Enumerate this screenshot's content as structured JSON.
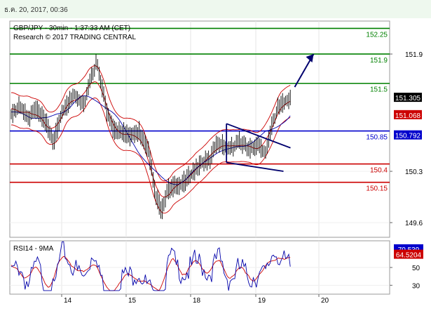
{
  "header": {
    "date_text": "ธ.ค. 20, 2017, 00:36"
  },
  "chart_data": {
    "type": "line",
    "symbol_line": "GBP/JPY - 30min - 1:37:33 AM (CET)",
    "research_line": "Research © 2017 TRADING CENTRAL",
    "x_tick_labels": [
      "14",
      "15",
      "18",
      "19",
      "20"
    ],
    "price_axis": {
      "ticks": [
        "151.9",
        "150.3",
        "149.6"
      ],
      "ylim": [
        149.4,
        152.35
      ]
    },
    "levels": [
      {
        "label": "152.25",
        "value": 152.25,
        "color": "#008000"
      },
      {
        "label": "151.9",
        "value": 151.9,
        "color": "#008000"
      },
      {
        "label": "151.5",
        "value": 151.5,
        "color": "#008000"
      },
      {
        "label": "150.85",
        "value": 150.85,
        "color": "#0000cc"
      },
      {
        "label": "150.4",
        "value": 150.4,
        "color": "#cc0000"
      },
      {
        "label": "150.15",
        "value": 150.15,
        "color": "#cc0000"
      }
    ],
    "price_tags": [
      {
        "label": "151.305",
        "value": 151.305,
        "bg": "#000000",
        "fg": "#ffffff"
      },
      {
        "label": "151.068",
        "value": 151.068,
        "bg": "#cc0000",
        "fg": "#ffffff"
      },
      {
        "label": "150.792",
        "value": 150.792,
        "bg": "#0000cc",
        "fg": "#ffffff"
      }
    ],
    "price_series": [
      {
        "x": 0.0,
        "y": 151.05
      },
      {
        "x": 0.2,
        "y": 151.2
      },
      {
        "x": 0.35,
        "y": 151.0
      },
      {
        "x": 0.5,
        "y": 151.15
      },
      {
        "x": 0.7,
        "y": 150.95
      },
      {
        "x": 0.85,
        "y": 150.7
      },
      {
        "x": 1.0,
        "y": 151.1
      },
      {
        "x": 1.2,
        "y": 151.35
      },
      {
        "x": 1.35,
        "y": 151.2
      },
      {
        "x": 1.45,
        "y": 151.55
      },
      {
        "x": 1.55,
        "y": 151.8
      },
      {
        "x": 1.7,
        "y": 151.1
      },
      {
        "x": 1.8,
        "y": 150.85
      },
      {
        "x": 1.95,
        "y": 150.85
      },
      {
        "x": 2.05,
        "y": 150.75
      },
      {
        "x": 2.2,
        "y": 150.85
      },
      {
        "x": 2.35,
        "y": 150.55
      },
      {
        "x": 2.45,
        "y": 150.0
      },
      {
        "x": 2.55,
        "y": 149.75
      },
      {
        "x": 2.65,
        "y": 150.05
      },
      {
        "x": 2.8,
        "y": 150.1
      },
      {
        "x": 2.9,
        "y": 150.15
      },
      {
        "x": 3.0,
        "y": 150.25
      },
      {
        "x": 3.15,
        "y": 150.4
      },
      {
        "x": 3.3,
        "y": 150.45
      },
      {
        "x": 3.4,
        "y": 150.7
      },
      {
        "x": 3.5,
        "y": 150.65
      },
      {
        "x": 3.6,
        "y": 150.6
      },
      {
        "x": 3.75,
        "y": 150.7
      },
      {
        "x": 3.9,
        "y": 150.6
      },
      {
        "x": 4.05,
        "y": 150.65
      },
      {
        "x": 4.15,
        "y": 150.55
      },
      {
        "x": 4.25,
        "y": 150.9
      },
      {
        "x": 4.35,
        "y": 151.15
      },
      {
        "x": 4.45,
        "y": 151.25
      },
      {
        "x": 4.55,
        "y": 151.3
      }
    ],
    "rsi": {
      "label": "RSI14 - 9MA",
      "ticks": [
        "50",
        "30"
      ],
      "ylim": [
        20,
        80
      ],
      "value_tags": [
        {
          "label": "70.539",
          "value": 70.539,
          "bg": "#0000cc",
          "fg": "#ffffff"
        },
        {
          "label": "64.5204",
          "value": 64.5204,
          "bg": "#cc0000",
          "fg": "#ffffff"
        }
      ]
    }
  }
}
